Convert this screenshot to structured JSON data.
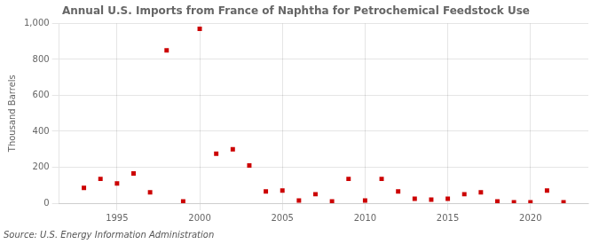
{
  "chart_data": {
    "type": "scatter",
    "title": "Annual U.S. Imports from France of Naphtha for Petrochemical Feedstock Use",
    "ylabel": "Thousand Barrels",
    "annotations": [
      "Source: U.S. Energy Information Administration"
    ],
    "x": [
      1993,
      1994,
      1995,
      1996,
      1997,
      1998,
      1999,
      2000,
      2001,
      2002,
      2003,
      2004,
      2005,
      2006,
      2007,
      2008,
      2009,
      2010,
      2011,
      2012,
      2013,
      2014,
      2015,
      2016,
      2017,
      2018,
      2019,
      2020,
      2021,
      2022
    ],
    "values": [
      85,
      135,
      110,
      165,
      60,
      850,
      10,
      970,
      275,
      300,
      210,
      65,
      70,
      15,
      50,
      10,
      135,
      15,
      135,
      65,
      25,
      20,
      25,
      50,
      60,
      10,
      5,
      5,
      70,
      5
    ],
    "color": "#cc0000",
    "marker": "square",
    "xlim": [
      1991.5,
      2023.5
    ],
    "xticks": [
      1995,
      2000,
      2005,
      2010,
      2015,
      2020
    ],
    "ylim": [
      0,
      1000
    ],
    "yticks": [
      0,
      200,
      400,
      600,
      800,
      {
        "value": 1000,
        "label": "1,000"
      }
    ],
    "grid": true
  }
}
